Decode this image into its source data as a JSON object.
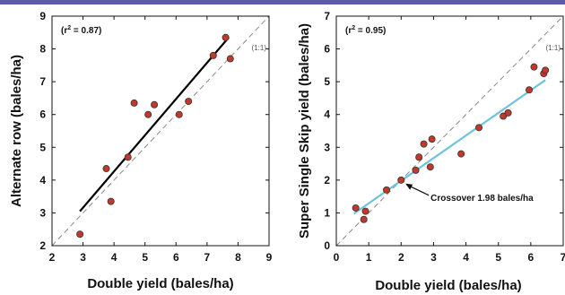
{
  "chart_data": [
    {
      "type": "scatter",
      "xlabel": "Double yield (bales/ha)",
      "ylabel": "Alternate row (bales/ha)",
      "xlim": [
        2,
        9
      ],
      "ylim": [
        2,
        9
      ],
      "xticks": [
        "2",
        "3",
        "4",
        "5",
        "6",
        "7",
        "8",
        "9"
      ],
      "yticks": [
        "2",
        "3",
        "4",
        "5",
        "6",
        "7",
        "8",
        "9"
      ],
      "r2_label": "r",
      "r2_sup": "2",
      "r2_value": " = 0.87",
      "oneone_label": "(1:1)",
      "x": [
        2.9,
        3.75,
        3.9,
        4.45,
        4.65,
        5.1,
        5.3,
        6.1,
        6.4,
        7.2,
        7.6,
        7.75
      ],
      "y": [
        2.35,
        4.35,
        3.35,
        4.7,
        6.35,
        6.0,
        6.3,
        6.0,
        6.4,
        7.8,
        8.35,
        7.7
      ],
      "fit": [
        [
          2.9,
          3.05
        ],
        [
          7.7,
          8.35
        ]
      ],
      "marker_color": "#c0392b",
      "fit_color": "#000000"
    },
    {
      "type": "scatter",
      "xlabel": "Double yield (bales/ha)",
      "ylabel": "Super Single Skip yield (bales/ha)",
      "xlim": [
        0,
        7
      ],
      "ylim": [
        0,
        7
      ],
      "xticks": [
        "0",
        "1",
        "2",
        "3",
        "4",
        "5",
        "6",
        "7"
      ],
      "yticks": [
        "0",
        "1",
        "2",
        "3",
        "4",
        "5",
        "6",
        "7"
      ],
      "r2_label": "r",
      "r2_sup": "2",
      "r2_value": " = 0.95",
      "oneone_label": "(1:1)",
      "crossover_label": "Crossover 1.98 bales/ha",
      "x": [
        0.6,
        0.85,
        0.9,
        1.55,
        2.0,
        2.45,
        2.55,
        2.7,
        2.9,
        2.95,
        3.85,
        4.4,
        5.15,
        5.3,
        5.95,
        6.1,
        6.4,
        6.45
      ],
      "y": [
        1.15,
        0.8,
        1.05,
        1.7,
        2.0,
        2.3,
        2.7,
        3.1,
        2.4,
        3.25,
        2.8,
        3.6,
        3.95,
        4.05,
        4.75,
        5.45,
        5.25,
        5.35
      ],
      "fit": [
        [
          0.55,
          0.98
        ],
        [
          6.45,
          5.05
        ]
      ],
      "marker_color": "#c0392b",
      "fit_color": "#6ec4dc"
    }
  ]
}
